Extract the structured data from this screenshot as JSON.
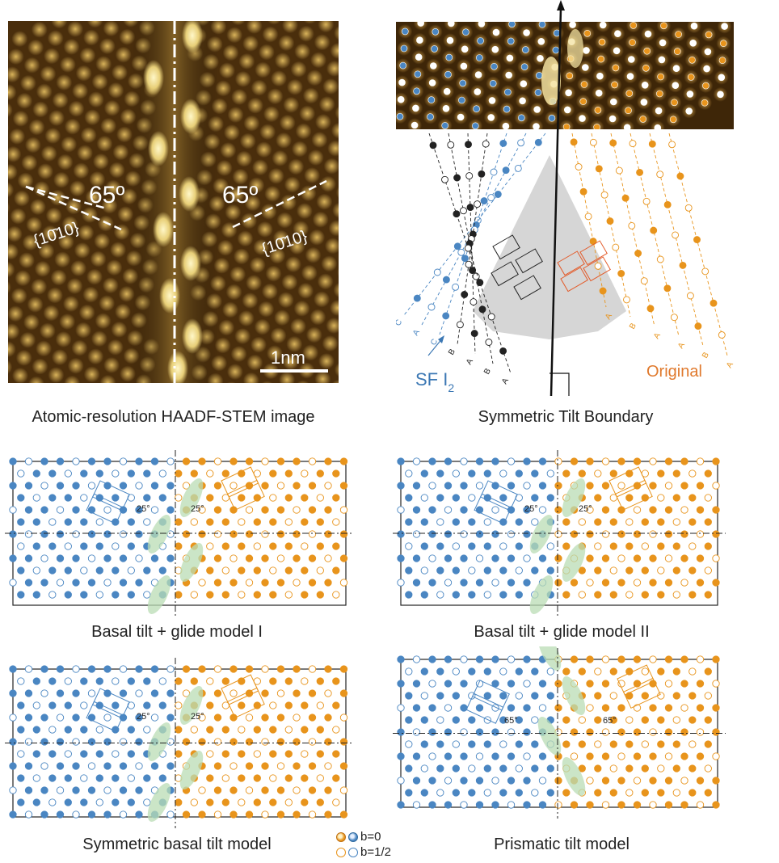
{
  "figure": {
    "stem": {
      "caption": "Atomic-resolution HAADF-STEM image",
      "angle_left": "65º",
      "angle_right": "65º",
      "plane_left": "{10̄10}",
      "plane_right": "{10̄10}",
      "scalebar": "1nm"
    },
    "tilt": {
      "caption": "Symmetric Tilt Boundary",
      "sf_label": "SF I",
      "sf_sub": "2",
      "original_label": "Original",
      "stack_left": [
        "C",
        "A",
        "C",
        "B",
        "A",
        "B",
        "A"
      ],
      "stack_right": [
        "A",
        "B",
        "A",
        "A",
        "B",
        "A"
      ]
    },
    "models": [
      {
        "caption": "Basal tilt + glide model I",
        "angle_left": "25°",
        "angle_right": "25°"
      },
      {
        "caption": "Basal tilt + glide model II",
        "angle_left": "25°",
        "angle_right": "25°"
      },
      {
        "caption": "Symmetric basal tilt model",
        "angle_left": "25°",
        "angle_right": "25°"
      },
      {
        "caption": "Prismatic tilt model",
        "angle_left": "65°",
        "angle_right": "65°"
      }
    ],
    "legend": {
      "filled": "b=0",
      "open": "b=1/2"
    },
    "colors": {
      "blue": "#4a86c2",
      "orange": "#e8941c",
      "red": "#e35b2a",
      "green": "#b9dcb4",
      "stem_dark": "#3a2206",
      "stem_bright": "#f2e3a0"
    }
  }
}
